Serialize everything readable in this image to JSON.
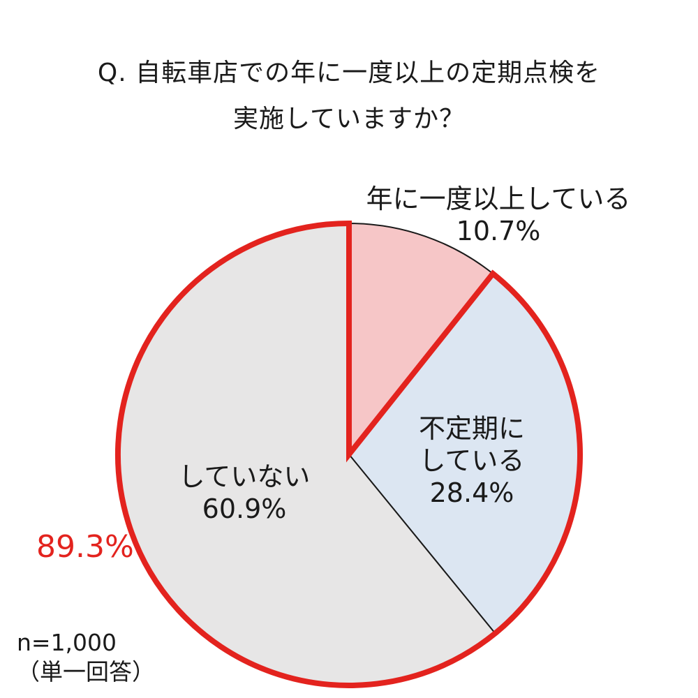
{
  "chart_data": {
    "type": "pie",
    "title_lines": [
      "Q. 自転車店での年に一度以上の定期点検を",
      "実施していますか？"
    ],
    "slices": [
      {
        "name": "年に一度以上している",
        "value": 10.7,
        "label": "10.7%",
        "color": "#f6c6c7"
      },
      {
        "name": "不定期にしている",
        "value": 28.4,
        "label": "28.4%",
        "color": "#dce6f2"
      },
      {
        "name": "していない",
        "value": 60.9,
        "label": "60.9%",
        "color": "#e7e6e6"
      }
    ],
    "highlight": {
      "slices": [
        1,
        2
      ],
      "label": "89.3%",
      "color": "#e3231e"
    },
    "note": {
      "sample": "n=1,000",
      "answer_type": "（単一回答）"
    }
  }
}
